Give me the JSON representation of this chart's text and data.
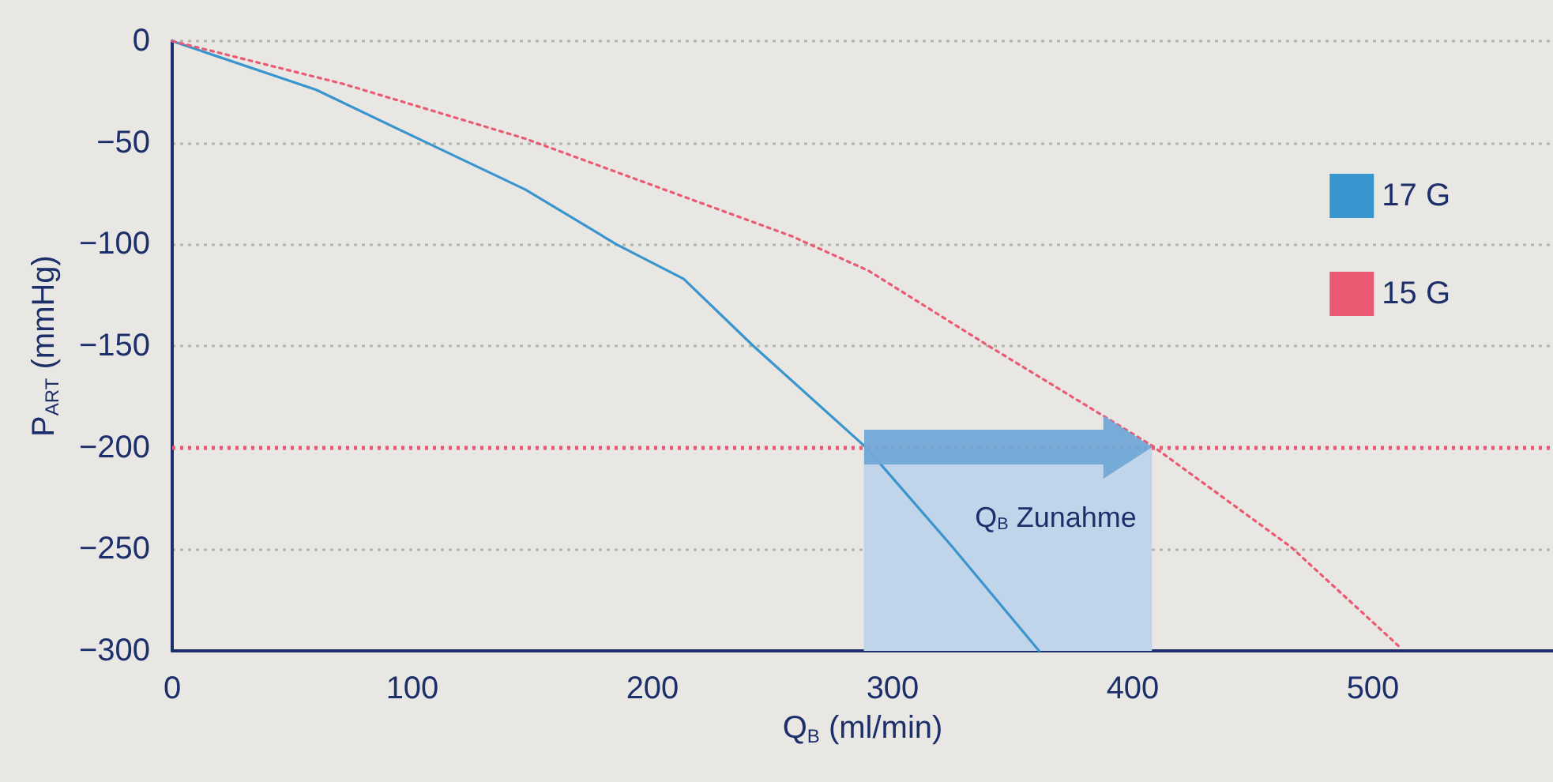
{
  "chart_data": {
    "type": "line",
    "xlabel": "Q$_{B}$ (ml/min)",
    "ylabel": "P$_{ART}$ (mmHg)",
    "xlim": [
      0,
      575
    ],
    "xticks": [
      0,
      100,
      200,
      300,
      400,
      500
    ],
    "ylim": [
      -300,
      0
    ],
    "yticks": [
      0,
      {
        "value": -50,
        "label": "−50"
      },
      {
        "value": -100,
        "label": "−100"
      },
      {
        "value": -150,
        "label": "−150"
      },
      {
        "value": -200,
        "label": "−200"
      },
      {
        "value": -250,
        "label": "−250"
      },
      {
        "value": -300,
        "label": "−300"
      }
    ],
    "grid": "y",
    "legend": "right",
    "marker": "none",
    "series": [
      {
        "name": "17 G",
        "color": "#3a95cf",
        "line_style": "solid",
        "x": [
          0,
          60,
          106,
          147,
          185,
          213,
          242,
          289,
          325,
          361
        ],
        "values": [
          0,
          -24,
          -50,
          -73,
          -100,
          -117,
          -150,
          -200,
          -249,
          -300
        ]
      },
      {
        "name": "15 G",
        "color": "#ea5a72",
        "line_style": "dotted",
        "x": [
          0,
          71,
          147,
          258,
          290,
          340,
          408,
          466,
          512
        ],
        "values": [
          0,
          -21,
          -48,
          -96,
          -113,
          -150,
          -199,
          -249,
          -299
        ]
      }
    ],
    "ref_lines": [
      {
        "axis": "y",
        "value": -200,
        "color": "#ea5a72",
        "line_style": "dotted"
      }
    ],
    "bands": [
      {
        "axis": "x",
        "from": 288,
        "to": 408,
        "label": "Q$_{B}$ Zunahme",
        "color": "#c0d4ea"
      }
    ]
  }
}
